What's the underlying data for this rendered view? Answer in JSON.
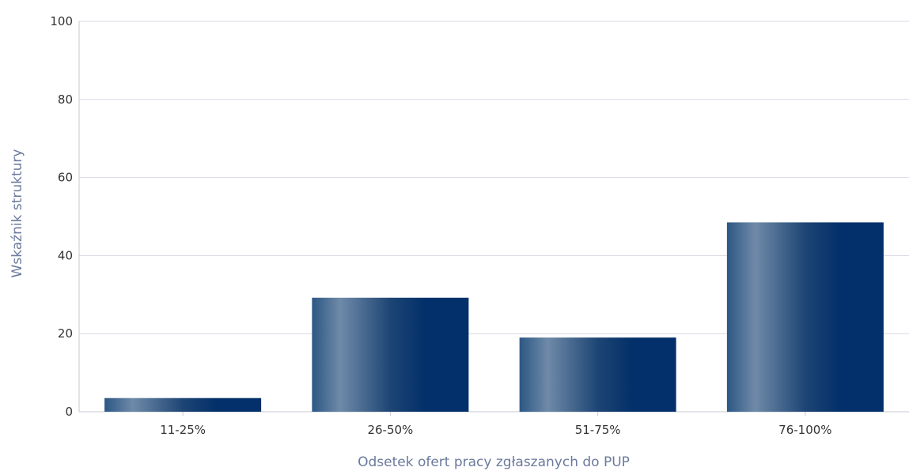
{
  "chart_data": {
    "type": "bar",
    "title": "",
    "xlabel": "Odsetek ofert pracy zgłaszanych do PUP",
    "ylabel": "Wskaźnik struktury",
    "categories": [
      "11-25%",
      "26-50%",
      "51-75%",
      "76-100%"
    ],
    "values": [
      3.5,
      29.2,
      19,
      48.5
    ],
    "ylim": [
      0,
      100
    ],
    "yticks": [
      "0",
      "20",
      "40",
      "60",
      "80",
      "100"
    ],
    "grid": true,
    "legend": "none",
    "colors": {
      "bar_dark": "#03306a",
      "bar_light": "#6f8aa8",
      "axis_title": "#6b7a9d",
      "grid": "#d6d9e3",
      "axis_line": "#c5c8d3"
    }
  }
}
